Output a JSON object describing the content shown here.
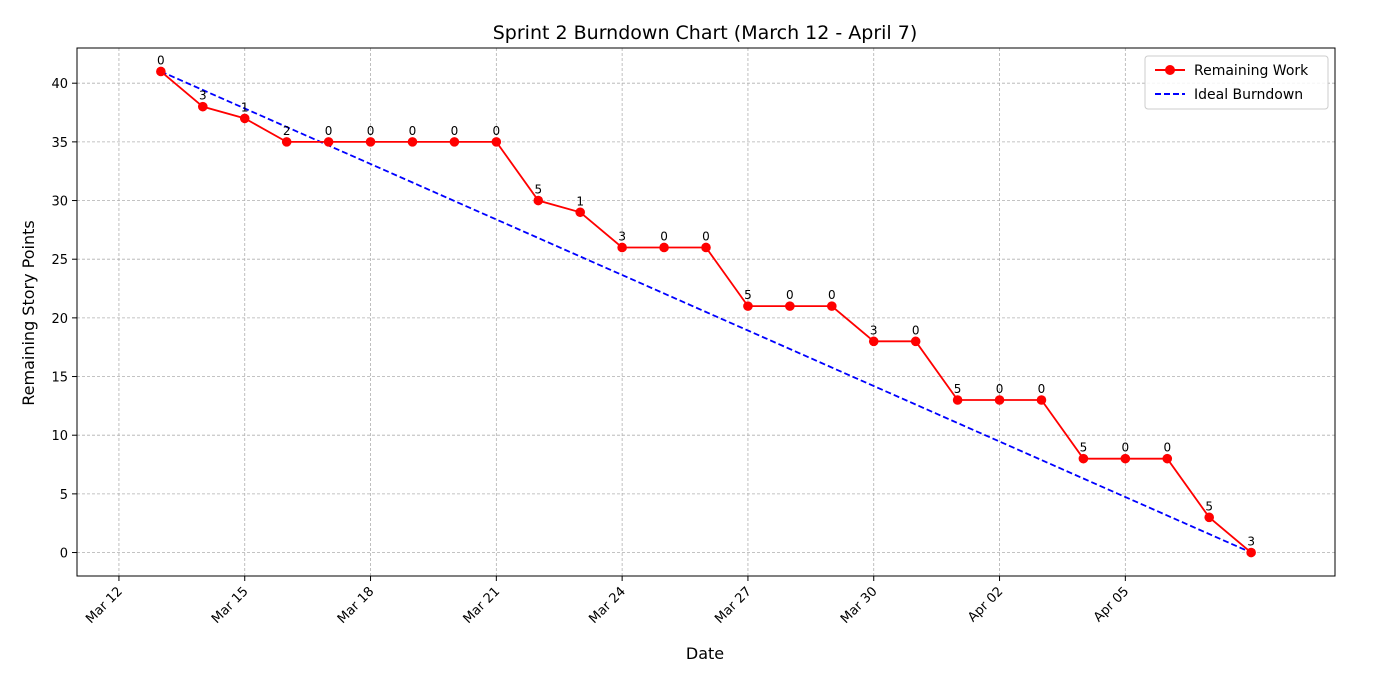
{
  "chart_data": {
    "type": "line",
    "title": "Sprint 2 Burndown Chart (March 12 - April 7)",
    "xlabel": "Date",
    "ylabel": "Remaining Story Points",
    "grid": true,
    "legend_position": "top-right",
    "xlim": [
      "2024-03-11",
      "2024-04-10"
    ],
    "ylim": [
      -2,
      43
    ],
    "x_ticks": [
      {
        "date": "2024-03-12",
        "label": "Mar 12"
      },
      {
        "date": "2024-03-15",
        "label": "Mar 15"
      },
      {
        "date": "2024-03-18",
        "label": "Mar 18"
      },
      {
        "date": "2024-03-21",
        "label": "Mar 21"
      },
      {
        "date": "2024-03-24",
        "label": "Mar 24"
      },
      {
        "date": "2024-03-27",
        "label": "Mar 27"
      },
      {
        "date": "2024-03-30",
        "label": "Mar 30"
      },
      {
        "date": "2024-04-02",
        "label": "Apr 02"
      },
      {
        "date": "2024-04-05",
        "label": "Apr 05"
      }
    ],
    "y_ticks": [
      0,
      5,
      10,
      15,
      20,
      25,
      30,
      35,
      40
    ],
    "series": [
      {
        "name": "Remaining Work",
        "color": "#ff0000",
        "style": "solid-with-markers",
        "x": [
          "2024-03-13",
          "2024-03-14",
          "2024-03-15",
          "2024-03-16",
          "2024-03-17",
          "2024-03-18",
          "2024-03-19",
          "2024-03-20",
          "2024-03-21",
          "2024-03-22",
          "2024-03-23",
          "2024-03-24",
          "2024-03-25",
          "2024-03-26",
          "2024-03-27",
          "2024-03-28",
          "2024-03-29",
          "2024-03-30",
          "2024-03-31",
          "2024-04-01",
          "2024-04-02",
          "2024-04-03",
          "2024-04-04",
          "2024-04-05",
          "2024-04-06",
          "2024-04-07",
          "2024-04-08"
        ],
        "values": [
          41,
          38,
          37,
          35,
          35,
          35,
          35,
          35,
          35,
          30,
          29,
          26,
          26,
          26,
          21,
          21,
          21,
          18,
          18,
          13,
          13,
          13,
          8,
          8,
          8,
          3,
          0
        ],
        "point_labels": [
          "0",
          "3",
          "1",
          "2",
          "0",
          "0",
          "0",
          "0",
          "0",
          "5",
          "1",
          "3",
          "0",
          "0",
          "5",
          "0",
          "0",
          "3",
          "0",
          "5",
          "0",
          "0",
          "5",
          "0",
          "0",
          "5",
          "3"
        ]
      },
      {
        "name": "Ideal Burndown",
        "color": "#0000ff",
        "style": "dashed",
        "x": [
          "2024-03-13",
          "2024-04-08"
        ],
        "values": [
          41,
          0
        ]
      }
    ]
  }
}
